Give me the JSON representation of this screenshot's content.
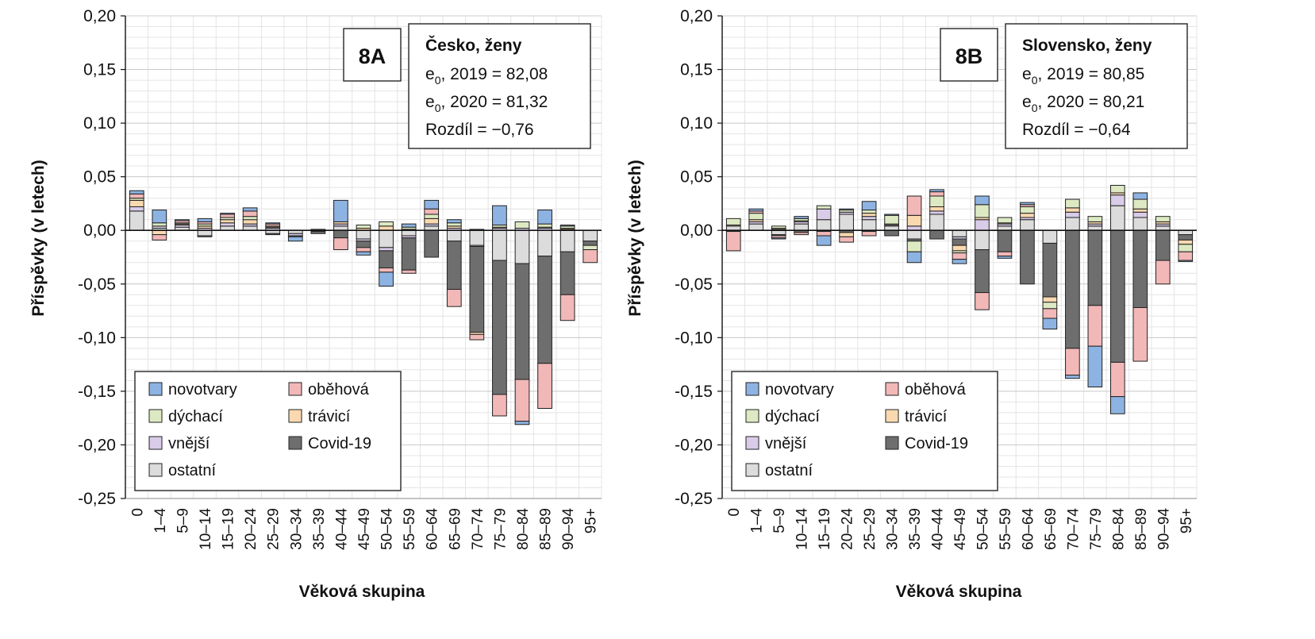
{
  "colors": {
    "novotvary": "#8db3e2",
    "obehova": "#f2b8b8",
    "dychaci": "#dde9c2",
    "travici": "#fad9b0",
    "vnejsi": "#d9cce8",
    "covid": "#6e6e6e",
    "ostatni": "#dcdcdc"
  },
  "chart_data": [
    {
      "type": "bar",
      "stacked": true,
      "panel_id": "8A",
      "title": "Česko, ženy",
      "info": [
        "2019 = 82,08",
        "2020 = 81,32",
        "Rozdíl = −0,76"
      ],
      "e_label": "e",
      "e_sub": "0",
      "xlabel": "Věková skupina",
      "ylabel": "Příspěvky (v letech)",
      "ylim": [
        -0.25,
        0.2
      ],
      "yticks": [
        "0,20",
        "0,15",
        "0,10",
        "0,05",
        "0,00",
        "-0,05",
        "-0,10",
        "-0,15",
        "-0,20",
        "-0,25"
      ],
      "grid": true,
      "legend_position": "bottom-left",
      "categories": [
        "0",
        "1–4",
        "5–9",
        "10–14",
        "15–19",
        "20–24",
        "25–29",
        "30–34",
        "35–39",
        "40–44",
        "45–49",
        "50–54",
        "55–59",
        "60–64",
        "65–69",
        "70–74",
        "75–79",
        "80–84",
        "85–89",
        "90–94",
        "95+"
      ],
      "series": [
        {
          "name": "ostatní",
          "key": "ostatni",
          "values": [
            0.018,
            0.002,
            0.003,
            -0.005,
            0.004,
            0.004,
            -0.003,
            -0.003,
            -0.001,
            0.004,
            -0.008,
            -0.016,
            -0.005,
            0.004,
            -0.01,
            -0.014,
            -0.028,
            -0.031,
            -0.024,
            -0.02,
            -0.01
          ]
        },
        {
          "name": "vnější",
          "key": "vnejsi",
          "values": [
            0.004,
            0.002,
            0.002,
            0.002,
            0.003,
            0.002,
            0.002,
            -0.002,
            0.0,
            0.002,
            -0.002,
            -0.003,
            -0.002,
            0.002,
            0.002,
            -0.001,
            0.002,
            0.002,
            0.002,
            0.001,
            0.0
          ]
        },
        {
          "name": "Covid-19",
          "key": "covid",
          "values": [
            0.0,
            0.0,
            0.0,
            -0.001,
            0.0,
            0.0,
            -0.001,
            -0.001,
            -0.002,
            -0.007,
            -0.006,
            -0.016,
            -0.03,
            -0.025,
            -0.045,
            -0.08,
            -0.125,
            -0.108,
            -0.1,
            -0.04,
            -0.004
          ]
        },
        {
          "name": "trávicí",
          "key": "travici",
          "values": [
            0.006,
            -0.004,
            0.001,
            0.002,
            0.003,
            0.004,
            0.001,
            0.0,
            0.001,
            0.002,
            0.002,
            0.004,
            0.001,
            0.005,
            0.002,
            -0.002,
            0.001,
            0.0,
            0.001,
            0.001,
            0.0
          ]
        },
        {
          "name": "dýchací",
          "key": "dychaci",
          "values": [
            0.002,
            0.003,
            0.001,
            0.002,
            0.002,
            0.003,
            0.001,
            0.0,
            0.0,
            0.0,
            0.003,
            0.004,
            0.002,
            0.004,
            0.003,
            0.0,
            0.002,
            0.006,
            0.003,
            0.002,
            -0.004
          ]
        },
        {
          "name": "oběhová",
          "key": "obehova",
          "values": [
            0.004,
            -0.005,
            0.002,
            0.002,
            0.003,
            0.005,
            0.002,
            0.0,
            0.0,
            -0.011,
            -0.004,
            -0.004,
            -0.003,
            0.005,
            -0.016,
            -0.005,
            -0.02,
            -0.039,
            -0.042,
            -0.024,
            -0.012
          ]
        },
        {
          "name": "novotvary",
          "key": "novotvary",
          "values": [
            0.003,
            0.012,
            0.001,
            0.003,
            0.001,
            0.003,
            0.001,
            -0.004,
            0.0,
            0.02,
            -0.003,
            -0.013,
            0.003,
            0.008,
            0.003,
            0.001,
            0.018,
            -0.003,
            0.013,
            0.001,
            0.0
          ]
        }
      ]
    },
    {
      "type": "bar",
      "stacked": true,
      "panel_id": "8B",
      "title": "Slovensko, ženy",
      "info": [
        "2019 = 80,85",
        "2020 = 80,21",
        "Rozdíl = −0,64"
      ],
      "e_label": "e",
      "e_sub": "0",
      "xlabel": "Věková skupina",
      "ylabel": "Příspěvky (v letech)",
      "ylim": [
        -0.25,
        0.2
      ],
      "yticks": [
        "0,20",
        "0,15",
        "0,10",
        "0,05",
        "0,00",
        "-0,05",
        "-0,10",
        "-0,15",
        "-0,20",
        "-0,25"
      ],
      "grid": true,
      "legend_position": "bottom-left",
      "categories": [
        "0",
        "1–4",
        "5–9",
        "10–14",
        "15–19",
        "20–24",
        "25–29",
        "30–34",
        "35–39",
        "40–44",
        "45–49",
        "50–54",
        "55–59",
        "60–64",
        "65–69",
        "70–74",
        "75–79",
        "80–84",
        "85–89",
        "90–94",
        "95+"
      ],
      "series": [
        {
          "name": "ostatní",
          "key": "ostatni",
          "values": [
            0.004,
            0.006,
            -0.004,
            0.006,
            0.01,
            0.015,
            0.01,
            0.004,
            -0.008,
            0.015,
            -0.006,
            -0.018,
            0.004,
            0.01,
            -0.012,
            0.012,
            0.004,
            0.023,
            0.012,
            0.004,
            -0.004
          ]
        },
        {
          "name": "vnější",
          "key": "vnejsi",
          "values": [
            0.0,
            0.002,
            0.001,
            0.002,
            0.01,
            0.002,
            0.003,
            0.001,
            0.004,
            0.003,
            -0.002,
            0.01,
            0.002,
            0.002,
            0.0,
            0.005,
            0.002,
            0.01,
            0.005,
            0.002,
            0.0
          ]
        },
        {
          "name": "Covid-19",
          "key": "covid",
          "values": [
            -0.001,
            0.0,
            -0.001,
            -0.002,
            -0.001,
            -0.002,
            -0.001,
            -0.005,
            -0.002,
            -0.008,
            -0.006,
            -0.04,
            -0.02,
            -0.05,
            -0.05,
            -0.11,
            -0.07,
            -0.123,
            -0.072,
            -0.028,
            -0.005
          ]
        },
        {
          "name": "trávicí",
          "key": "travici",
          "values": [
            0.001,
            0.002,
            0.001,
            0.001,
            0.0,
            -0.004,
            0.003,
            0.001,
            0.01,
            0.004,
            -0.005,
            0.002,
            0.001,
            0.004,
            -0.005,
            0.004,
            0.002,
            0.002,
            0.003,
            0.002,
            -0.004
          ]
        },
        {
          "name": "dýchací",
          "key": "dychaci",
          "values": [
            0.006,
            0.006,
            0.002,
            0.002,
            0.003,
            0.002,
            0.003,
            0.008,
            -0.01,
            0.01,
            -0.002,
            0.012,
            0.005,
            0.006,
            -0.006,
            0.008,
            0.005,
            0.007,
            0.009,
            0.005,
            -0.007
          ]
        },
        {
          "name": "oběhová",
          "key": "obehova",
          "values": [
            -0.018,
            0.002,
            -0.002,
            -0.002,
            -0.004,
            -0.005,
            -0.004,
            0.0,
            0.018,
            0.004,
            -0.006,
            -0.016,
            -0.004,
            0.002,
            -0.009,
            -0.025,
            -0.038,
            -0.032,
            -0.05,
            -0.022,
            -0.008
          ]
        },
        {
          "name": "novotvary",
          "key": "novotvary",
          "values": [
            0.0,
            0.002,
            -0.001,
            0.002,
            -0.009,
            0.001,
            0.008,
            0.001,
            -0.01,
            0.002,
            -0.004,
            0.008,
            -0.002,
            0.002,
            -0.01,
            -0.003,
            -0.038,
            -0.016,
            0.006,
            0.0,
            -0.001
          ]
        }
      ]
    }
  ]
}
